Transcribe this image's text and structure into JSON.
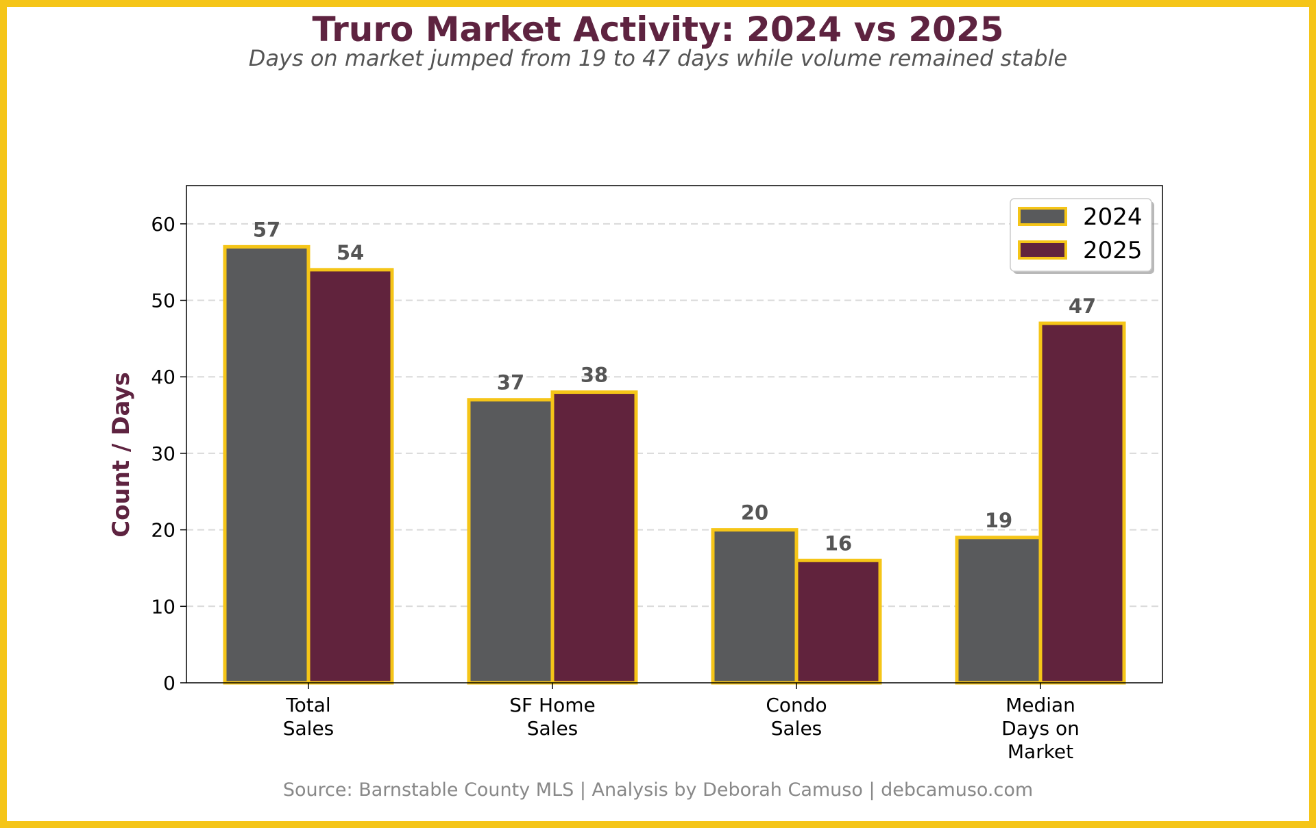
{
  "colors": {
    "frame": "#F5C518",
    "series_2024": "#595A5C",
    "series_2025": "#61233D",
    "bar_edge": "#F5C518",
    "title": "#5E2340",
    "subtitle": "#555555",
    "value_label": "#555555",
    "grid": "#D9D9D9",
    "source": "#888888"
  },
  "chart_data": {
    "type": "bar",
    "title": "Truro Market Activity: 2024 vs 2025",
    "subtitle": "Days on market jumped from 19 to 47 days while volume remained stable",
    "xlabel": "",
    "ylabel": "Count / Days",
    "ylim": [
      0,
      65
    ],
    "yticks": [
      "0",
      "10",
      "20",
      "30",
      "40",
      "50",
      "60"
    ],
    "grid": "horizontal dashed",
    "legend_position": "top-right",
    "categories": [
      [
        "Total",
        "Sales"
      ],
      [
        "SF Home",
        "Sales"
      ],
      [
        "Condo",
        "Sales"
      ],
      [
        "Median",
        "Days on",
        "Market"
      ]
    ],
    "series": [
      {
        "name": "2024",
        "values": [
          57,
          37,
          20,
          19
        ]
      },
      {
        "name": "2025",
        "values": [
          54,
          38,
          16,
          47
        ]
      }
    ],
    "source": "Source: Barnstable County MLS | Analysis by Deborah Camuso | debcamuso.com"
  }
}
